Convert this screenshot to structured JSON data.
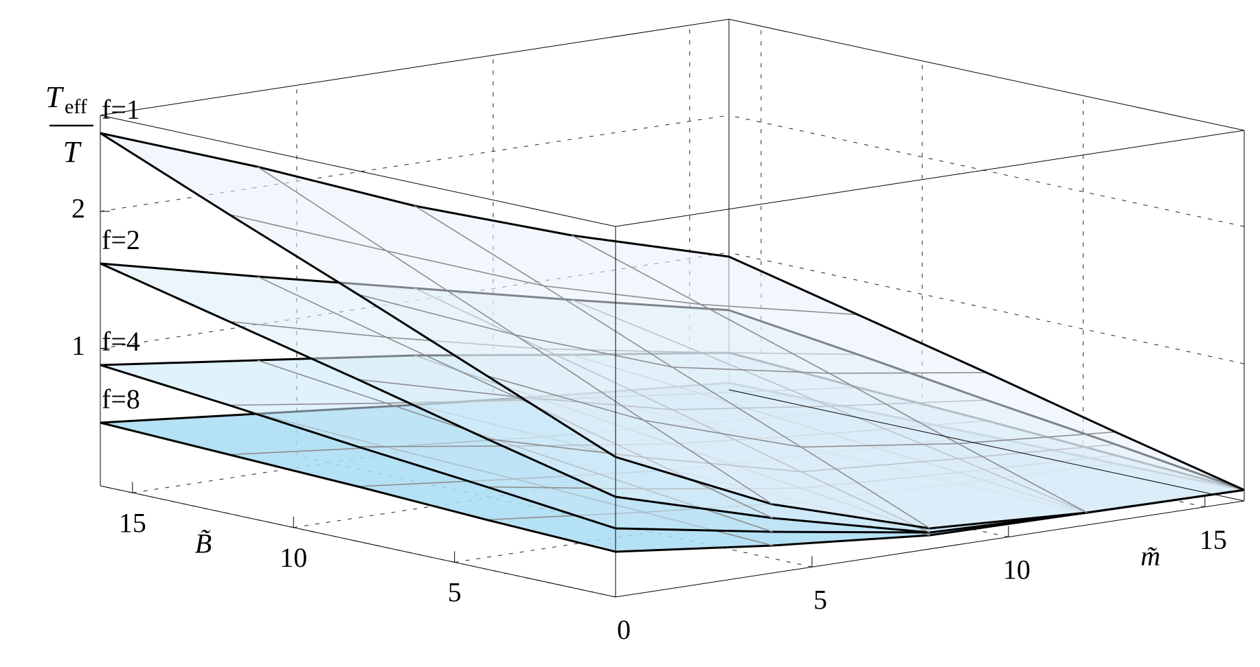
{
  "chart_data": {
    "type": "surface3d",
    "xlabel": "m̃",
    "ylabel": "B̃",
    "zlabel_numerator": "T",
    "zlabel_subscript": "eff",
    "zlabel_denominator": "T",
    "x": [
      0,
      4,
      8,
      12,
      16
    ],
    "y": [
      0,
      4,
      8,
      12,
      16
    ],
    "xlim": [
      0,
      16
    ],
    "ylim": [
      0,
      16
    ],
    "zlim": [
      0,
      2.7
    ],
    "xticks": [
      0,
      5,
      10,
      15
    ],
    "yticks": [
      5,
      10,
      15
    ],
    "zticks": [
      1,
      2
    ],
    "grid": true,
    "series": [
      {
        "name": "f=1",
        "color": "#e6f1fa",
        "z": [
          [
            1.02,
            0.5,
            0.15,
            0.09,
            0.08
          ],
          [
            1.41,
            0.91,
            0.54,
            0.39,
            0.3
          ],
          [
            1.8,
            1.33,
            0.92,
            0.7,
            0.53
          ],
          [
            2.18,
            1.74,
            1.31,
            1.0,
            0.75
          ],
          [
            2.57,
            2.15,
            1.69,
            1.3,
            0.97
          ]
        ]
      },
      {
        "name": "f=2",
        "color": "#dbecf8",
        "z": [
          [
            0.73,
            0.4,
            0.12,
            0.09,
            0.08
          ],
          [
            0.95,
            0.64,
            0.36,
            0.28,
            0.21
          ],
          [
            1.18,
            0.88,
            0.61,
            0.46,
            0.33
          ],
          [
            1.4,
            1.11,
            0.85,
            0.65,
            0.46
          ],
          [
            1.62,
            1.35,
            1.09,
            0.83,
            0.58
          ]
        ]
      },
      {
        "name": "f=4",
        "color": "#c6e7f7",
        "z": [
          [
            0.5,
            0.3,
            0.12,
            0.09,
            0.08
          ],
          [
            0.6,
            0.41,
            0.24,
            0.18,
            0.13
          ],
          [
            0.69,
            0.52,
            0.36,
            0.26,
            0.18
          ],
          [
            0.79,
            0.63,
            0.48,
            0.35,
            0.22
          ],
          [
            0.88,
            0.74,
            0.6,
            0.43,
            0.27
          ]
        ]
      },
      {
        "name": "f=8",
        "color": "#a8dcf2",
        "z": [
          [
            0.33,
            0.2,
            0.1,
            0.09,
            0.08
          ],
          [
            0.36,
            0.24,
            0.14,
            0.1,
            0.07
          ],
          [
            0.4,
            0.28,
            0.17,
            0.12,
            0.07
          ],
          [
            0.43,
            0.31,
            0.21,
            0.13,
            0.06
          ],
          [
            0.46,
            0.35,
            0.24,
            0.14,
            0.05
          ]
        ]
      }
    ]
  }
}
